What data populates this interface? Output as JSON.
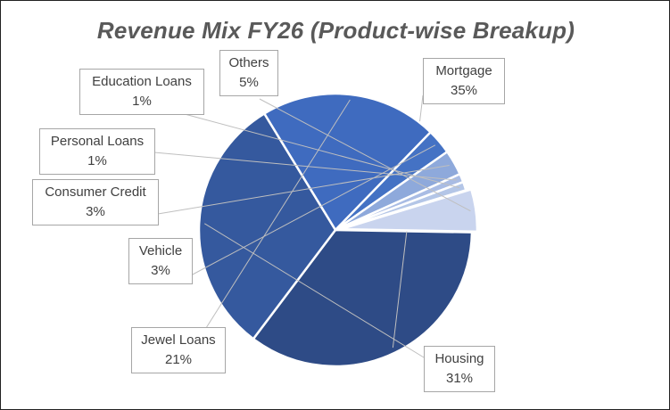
{
  "chart_data": {
    "type": "pie",
    "title": "Revenue Mix FY26 (Product-wise Breakup)",
    "unit": "%",
    "slices": [
      {
        "name": "Mortgage",
        "value": 35,
        "label": "35%",
        "color": "#2e4b86"
      },
      {
        "name": "Housing",
        "value": 31,
        "label": "31%",
        "color": "#35599e"
      },
      {
        "name": "Jewel Loans",
        "value": 21,
        "label": "21%",
        "color": "#3f6bbf"
      },
      {
        "name": "Vehicle",
        "value": 3,
        "label": "3%",
        "color": "#4472c4"
      },
      {
        "name": "Consumer Credit",
        "value": 3,
        "label": "3%",
        "color": "#8ea9db"
      },
      {
        "name": "Personal Loans",
        "value": 1,
        "label": "1%",
        "color": "#a9bce4"
      },
      {
        "name": "Education Loans",
        "value": 1,
        "label": "1%",
        "color": "#b4c6e7"
      },
      {
        "name": "Others",
        "value": 5,
        "label": "5%",
        "color": "#c9d4ee"
      }
    ],
    "legend": "none",
    "data_labels": "callouts"
  }
}
